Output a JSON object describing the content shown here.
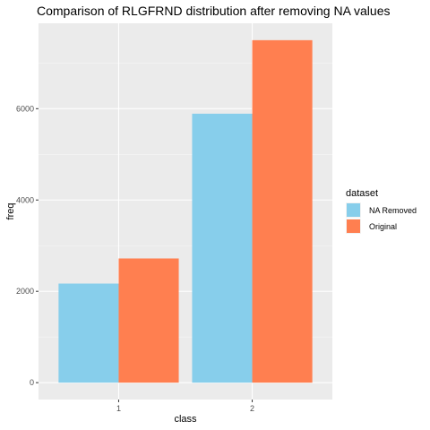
{
  "chart_data": {
    "type": "bar",
    "title": "Comparison of RLGFRND distribution after removing NA values",
    "xlabel": "class",
    "ylabel": "freq",
    "categories": [
      "1",
      "2"
    ],
    "series": [
      {
        "name": "NA Removed",
        "values": [
          2170,
          5890
        ]
      },
      {
        "name": "Original",
        "values": [
          2720,
          7500
        ]
      }
    ],
    "ylim": [
      -370,
      7870
    ],
    "yticks": [
      0,
      2000,
      4000,
      6000
    ],
    "grid": true,
    "legend": {
      "title": "dataset",
      "position": "right"
    },
    "colors": {
      "panel_background": "#ebebeb",
      "grid_major": "#ffffff",
      "grid_minor": "#f5f5f5",
      "tick": "#333333",
      "series": [
        "#87ceeb",
        "#ff7f50"
      ]
    }
  }
}
